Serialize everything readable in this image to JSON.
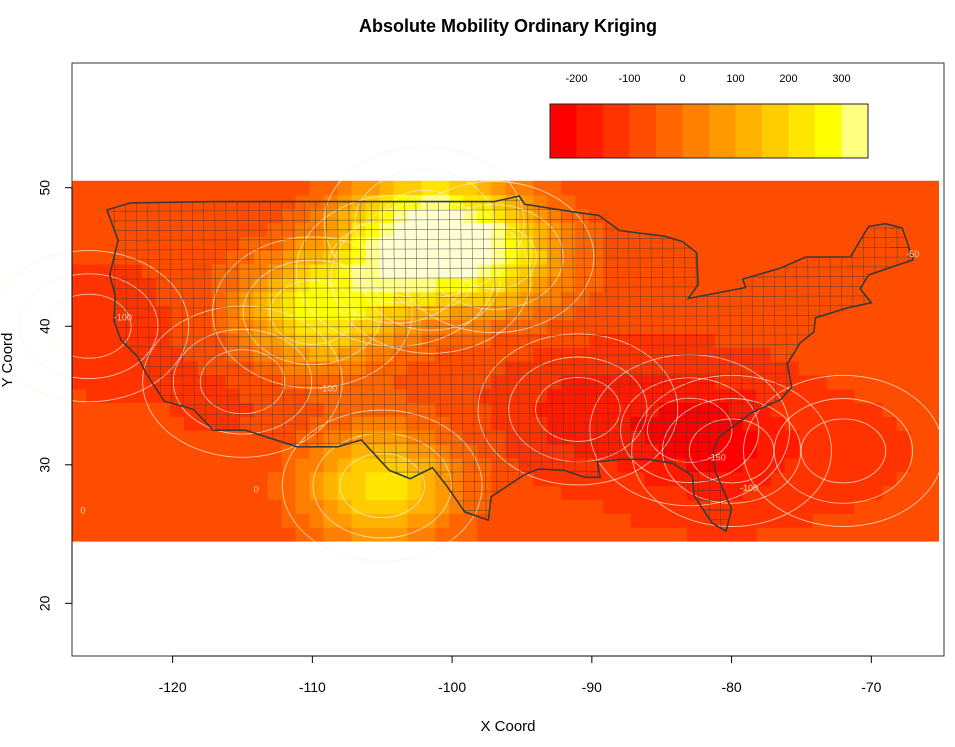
{
  "chart_data": {
    "type": "heatmap",
    "title": "Absolute Mobility Ordinary Kriging",
    "xlabel": "X Coord",
    "ylabel": "Y Coord",
    "xlim": [
      -127.2,
      -64.8
    ],
    "ylim": [
      16.2,
      59.0
    ],
    "x_ticks": [
      -120,
      -110,
      -100,
      -90,
      -80,
      -70
    ],
    "y_ticks": [
      20,
      30,
      40,
      50
    ],
    "grid_x_range": [
      -127.2,
      -64.8
    ],
    "grid_y_range": [
      24.5,
      50.5
    ],
    "legend": {
      "placement": "top-right",
      "ticks": [
        -200,
        -100,
        0,
        100,
        200,
        300
      ],
      "breaks": [
        -250,
        -200,
        -150,
        -100,
        -50,
        0,
        50,
        100,
        150,
        200,
        250,
        300,
        350
      ],
      "colors": [
        "#ff0000",
        "#ff1a00",
        "#ff3300",
        "#ff4d00",
        "#ff6600",
        "#ff8000",
        "#ff9900",
        "#ffb300",
        "#ffcc00",
        "#ffe600",
        "#ffff00",
        "#ffff80"
      ],
      "top_color": "#ffffd0"
    },
    "baseline_value": -90,
    "surface_hotspots": [
      {
        "x": -102,
        "y": 47.5,
        "value": 250
      },
      {
        "x": -97,
        "y": 45,
        "value": 220
      },
      {
        "x": -104,
        "y": 44,
        "value": 150
      },
      {
        "x": -110,
        "y": 41,
        "value": 230
      },
      {
        "x": -105,
        "y": 28.5,
        "value": 230
      },
      {
        "x": -101.5,
        "y": 43.5,
        "value": -140
      },
      {
        "x": -91,
        "y": 34,
        "value": -170
      },
      {
        "x": -83,
        "y": 32.5,
        "value": -180
      },
      {
        "x": -80,
        "y": 31,
        "value": -160
      },
      {
        "x": -115,
        "y": 36,
        "value": -120
      },
      {
        "x": -126,
        "y": 40,
        "value": -130
      },
      {
        "x": -72,
        "y": 31,
        "value": -110
      }
    ],
    "contour_labels": [
      {
        "text": "-100",
        "x": -124.2,
        "y": 40.4
      },
      {
        "text": "-100",
        "x": -109.5,
        "y": 35.3
      },
      {
        "text": "-150",
        "x": -81.7,
        "y": 30.3
      },
      {
        "text": "-100",
        "x": -79.4,
        "y": 28.1
      },
      {
        "text": "-50",
        "x": -67.5,
        "y": 45.0
      },
      {
        "text": "0",
        "x": -114.2,
        "y": 28.0
      },
      {
        "text": "0",
        "x": -126.6,
        "y": 26.5
      }
    ]
  }
}
